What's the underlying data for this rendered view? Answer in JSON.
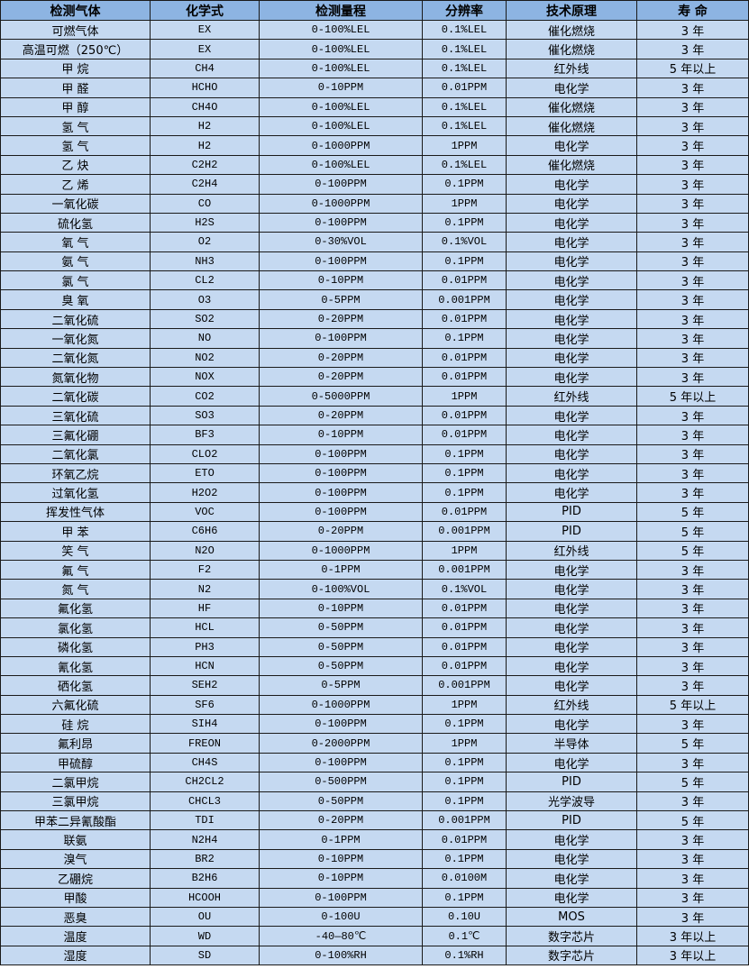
{
  "table": {
    "headers": [
      "检测气体",
      "化学式",
      "检测量程",
      "分辨率",
      "技术原理",
      "寿 命"
    ],
    "rows": [
      [
        "可燃气体",
        "EX",
        "0-100%LEL",
        "0.1%LEL",
        "催化燃烧",
        "3 年"
      ],
      [
        "高温可燃（250℃）",
        "EX",
        "0-100%LEL",
        "0.1%LEL",
        "催化燃烧",
        "3 年"
      ],
      [
        "甲 烷",
        "CH4",
        "0-100%LEL",
        "0.1%LEL",
        "红外线",
        "5 年以上"
      ],
      [
        "甲 醛",
        "HCHO",
        "0-10PPM",
        "0.01PPM",
        "电化学",
        "3 年"
      ],
      [
        "甲 醇",
        "CH4O",
        "0-100%LEL",
        "0.1%LEL",
        "催化燃烧",
        "3 年"
      ],
      [
        "氢 气",
        "H2",
        "0-100%LEL",
        "0.1%LEL",
        "催化燃烧",
        "3 年"
      ],
      [
        "氢 气",
        "H2",
        "0-1000PPM",
        "1PPM",
        "电化学",
        "3 年"
      ],
      [
        "乙 炔",
        "C2H2",
        "0-100%LEL",
        "0.1%LEL",
        "催化燃烧",
        "3 年"
      ],
      [
        "乙 烯",
        "C2H4",
        "0-100PPM",
        "0.1PPM",
        "电化学",
        "3 年"
      ],
      [
        "一氧化碳",
        "CO",
        "0-1000PPM",
        "1PPM",
        "电化学",
        "3 年"
      ],
      [
        "硫化氢",
        "H2S",
        "0-100PPM",
        "0.1PPM",
        "电化学",
        "3 年"
      ],
      [
        "氧 气",
        "O2",
        "0-30%VOL",
        "0.1%VOL",
        "电化学",
        "3 年"
      ],
      [
        "氨 气",
        "NH3",
        "0-100PPM",
        "0.1PPM",
        "电化学",
        "3 年"
      ],
      [
        "氯 气",
        "CL2",
        "0-10PPM",
        "0.01PPM",
        "电化学",
        "3 年"
      ],
      [
        "臭 氧",
        "O3",
        "0-5PPM",
        "0.001PPM",
        "电化学",
        "3 年"
      ],
      [
        "二氧化硫",
        "SO2",
        "0-20PPM",
        "0.01PPM",
        "电化学",
        "3 年"
      ],
      [
        "一氧化氮",
        "NO",
        "0-100PPM",
        "0.1PPM",
        "电化学",
        "3 年"
      ],
      [
        "二氧化氮",
        "NO2",
        "0-20PPM",
        "0.01PPM",
        "电化学",
        "3 年"
      ],
      [
        "氮氧化物",
        "NOX",
        "0-20PPM",
        "0.01PPM",
        "电化学",
        "3 年"
      ],
      [
        "二氧化碳",
        "CO2",
        "0-5000PPM",
        "1PPM",
        "红外线",
        "5 年以上"
      ],
      [
        "三氧化硫",
        "SO3",
        "0-20PPM",
        "0.01PPM",
        "电化学",
        "3 年"
      ],
      [
        "三氟化硼",
        "BF3",
        "0-10PPM",
        "0.01PPM",
        "电化学",
        "3 年"
      ],
      [
        "二氧化氯",
        "CLO2",
        "0-100PPM",
        "0.1PPM",
        "电化学",
        "3 年"
      ],
      [
        "环氧乙烷",
        "ETO",
        "0-100PPM",
        "0.1PPM",
        "电化学",
        "3 年"
      ],
      [
        "过氧化氢",
        "H2O2",
        "0-100PPM",
        "0.1PPM",
        "电化学",
        "3 年"
      ],
      [
        "挥发性气体",
        "VOC",
        "0-100PPM",
        "0.01PPM",
        "PID",
        "5 年"
      ],
      [
        "甲 苯",
        "C6H6",
        "0-20PPM",
        "0.001PPM",
        "PID",
        "5 年"
      ],
      [
        "笑 气",
        "N2O",
        "0-1000PPM",
        "1PPM",
        "红外线",
        "5 年"
      ],
      [
        "氟 气",
        "F2",
        "0-1PPM",
        "0.001PPM",
        "电化学",
        "3 年"
      ],
      [
        "氮 气",
        "N2",
        "0-100%VOL",
        "0.1%VOL",
        "电化学",
        "3 年"
      ],
      [
        "氟化氢",
        "HF",
        "0-10PPM",
        "0.01PPM",
        "电化学",
        "3 年"
      ],
      [
        "氯化氢",
        "HCL",
        "0-50PPM",
        "0.01PPM",
        "电化学",
        "3 年"
      ],
      [
        "磷化氢",
        "PH3",
        "0-50PPM",
        "0.01PPM",
        "电化学",
        "3 年"
      ],
      [
        "氰化氢",
        "HCN",
        "0-50PPM",
        "0.01PPM",
        "电化学",
        "3 年"
      ],
      [
        "硒化氢",
        "SEH2",
        "0-5PPM",
        "0.001PPM",
        "电化学",
        "3 年"
      ],
      [
        "六氟化硫",
        "SF6",
        "0-1000PPM",
        "1PPM",
        "红外线",
        "5 年以上"
      ],
      [
        "硅 烷",
        "SIH4",
        "0-100PPM",
        "0.1PPM",
        "电化学",
        "3 年"
      ],
      [
        "氟利昂",
        "FREON",
        "0-2000PPM",
        "1PPM",
        "半导体",
        "5 年"
      ],
      [
        "甲硫醇",
        "CH4S",
        "0-100PPM",
        "0.1PPM",
        "电化学",
        "3 年"
      ],
      [
        "二氯甲烷",
        "CH2CL2",
        "0-500PPM",
        "0.1PPM",
        "PID",
        "5 年"
      ],
      [
        "三氯甲烷",
        "CHCL3",
        "0-50PPM",
        "0.1PPM",
        "光学波导",
        "3 年"
      ],
      [
        "甲苯二异氰酸酯",
        "TDI",
        "0-20PPM",
        "0.001PPM",
        "PID",
        "5 年"
      ],
      [
        "联氨",
        "N2H4",
        "0-1PPM",
        "0.01PPM",
        "电化学",
        "3 年"
      ],
      [
        "溴气",
        "BR2",
        "0-10PPM",
        "0.1PPM",
        "电化学",
        "3 年"
      ],
      [
        "乙硼烷",
        "B2H6",
        "0-10PPM",
        "0.0100M",
        "电化学",
        "3 年"
      ],
      [
        "甲酸",
        "HCOOH",
        "0-100PPM",
        "0.1PPM",
        "电化学",
        "3 年"
      ],
      [
        "恶臭",
        "OU",
        "0-100U",
        "0.10U",
        "MOS",
        "3 年"
      ],
      [
        "温度",
        "WD",
        "-40—80℃",
        "0.1℃",
        "数字芯片",
        "3 年以上"
      ],
      [
        "湿度",
        "SD",
        "0-100%RH",
        "0.1%RH",
        "数字芯片",
        "3 年以上"
      ]
    ]
  },
  "colors": {
    "header_bg": "#8db4e2",
    "row_bg": "#c5d9f1",
    "border": "#1a1a1a"
  }
}
